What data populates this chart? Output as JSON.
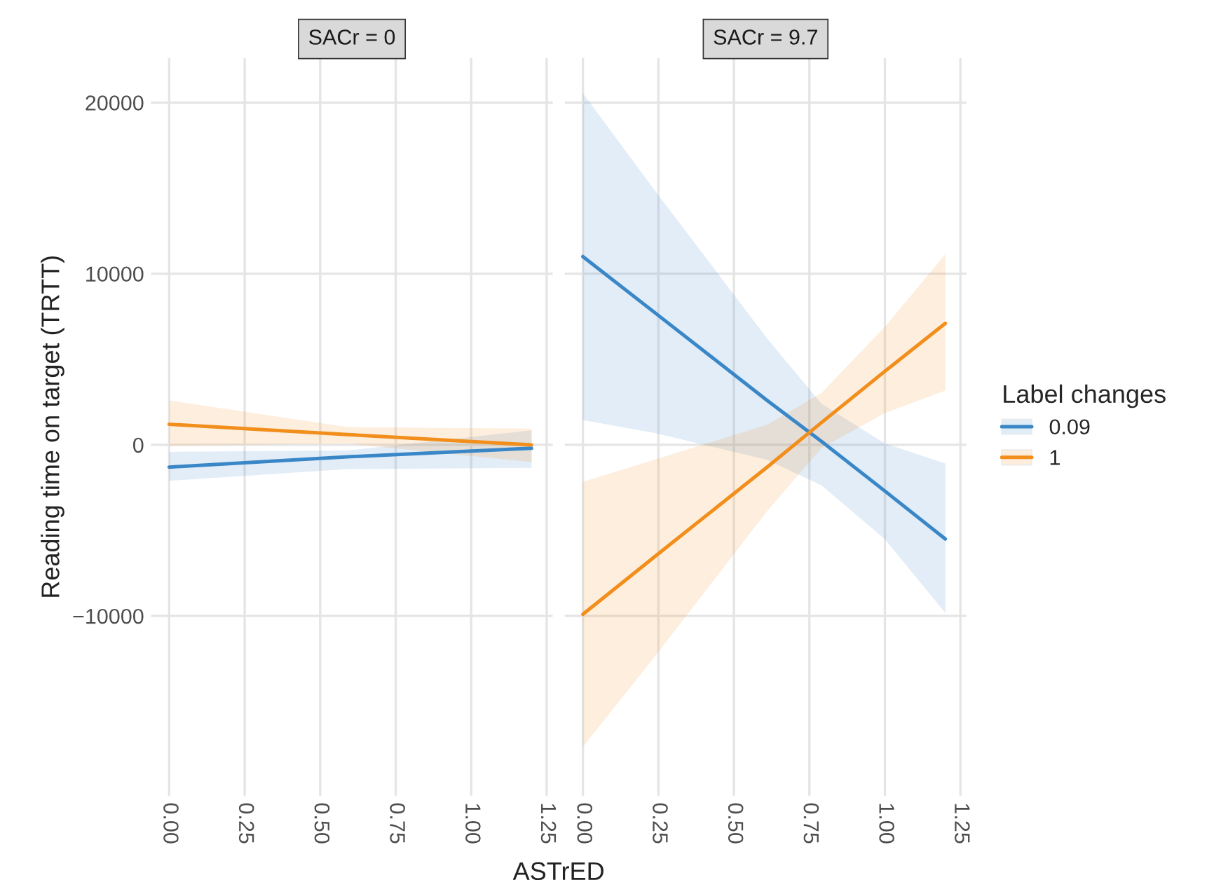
{
  "chart_data": [
    {
      "type": "line",
      "title": "SACr = 0",
      "xlabel": "ASTrED",
      "ylabel": "Reading time on target (TRTT)",
      "xlim": [
        -0.06,
        1.27
      ],
      "ylim": [
        -20500,
        22600
      ],
      "xticks": [
        {
          "value": 0,
          "label": "0.00"
        },
        {
          "value": 0.25,
          "label": "0.25"
        },
        {
          "value": 0.5,
          "label": "0.50"
        },
        {
          "value": 0.75,
          "label": "0.75"
        },
        {
          "value": 1,
          "label": "1.00"
        },
        {
          "value": 1.25,
          "label": "1.25"
        }
      ],
      "yticks": [
        {
          "value": -10000,
          "label": "−10000"
        },
        0,
        10000,
        20000
      ],
      "grid": true,
      "legend": false,
      "series": [
        {
          "color": "#3a87c8",
          "x": [
            0,
            0.59,
            1.2
          ],
          "values": [
            -1300,
            -700,
            -200
          ],
          "lower": [
            -2100,
            -1420,
            -1340
          ],
          "upper": [
            -410,
            -330,
            850
          ]
        },
        {
          "color": "#f28e1c",
          "x": [
            0,
            0.59,
            1.2
          ],
          "values": [
            1200,
            600,
            0
          ],
          "lower": [
            -50,
            80,
            -1010
          ],
          "upper": [
            2590,
            1040,
            950
          ]
        }
      ]
    },
    {
      "type": "line",
      "title": "SACr = 9.7",
      "legend_title": "Label changes",
      "xlim": [
        -0.06,
        1.27
      ],
      "ylim": [
        -20500,
        22600
      ],
      "xticks": [
        {
          "value": 0,
          "label": "0.00"
        },
        {
          "value": 0.25,
          "label": "0.25"
        },
        {
          "value": 0.5,
          "label": "0.50"
        },
        {
          "value": 0.75,
          "label": "0.75"
        },
        {
          "value": 1,
          "label": "1.00"
        },
        {
          "value": 1.25,
          "label": "1.25"
        }
      ],
      "yticks": [
        {
          "value": -10000,
          "label": null
        },
        {
          "value": 0,
          "label": null
        },
        {
          "value": 10000,
          "label": null
        },
        {
          "value": 20000,
          "label": null
        }
      ],
      "tick_labels": "x",
      "grid": true,
      "legend": "right",
      "series": [
        {
          "name": "0.09",
          "color": "#3a87c8",
          "x": [
            0,
            0.24,
            0.61,
            0.79,
            1.0,
            1.2
          ],
          "values": [
            11000,
            7700,
            2600,
            200,
            -2700,
            -5500
          ],
          "lower": [
            1450,
            680,
            -870,
            -2370,
            -5510,
            -9820
          ],
          "upper": [
            20550,
            14820,
            6220,
            2400,
            80,
            -1090
          ]
        },
        {
          "name": "1",
          "color": "#f28e1c",
          "x": [
            0,
            0.24,
            0.61,
            0.79,
            1.0,
            1.2
          ],
          "values": [
            -9900,
            -6500,
            -1300,
            1300,
            4300,
            7100
          ],
          "lower": [
            -17650,
            -12330,
            -3870,
            -190,
            1860,
            3170
          ],
          "upper": [
            -2160,
            -850,
            1170,
            3030,
            6900,
            11130
          ]
        }
      ]
    }
  ]
}
